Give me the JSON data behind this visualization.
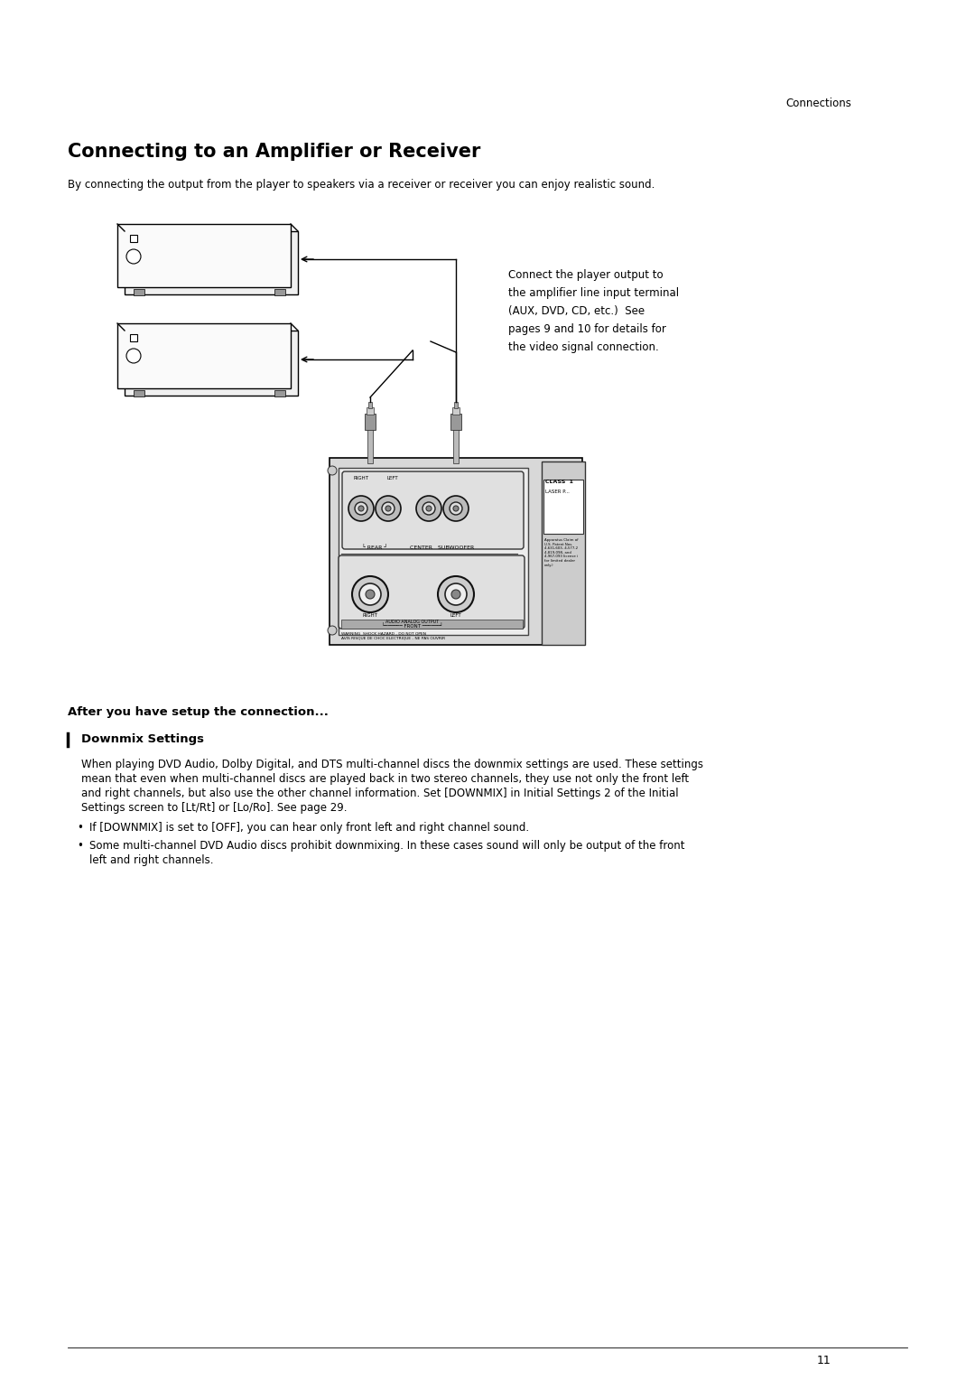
{
  "page_bg": "#ffffff",
  "header_text": "Connections",
  "title": "Connecting to an Amplifier or Receiver",
  "subtitle": "By connecting the output from the player to speakers via a receiver or receiver you can enjoy realistic sound.",
  "callout_text": "Connect the player output to\nthe amplifier line input terminal\n(AUX, DVD, CD, etc.)  See\npages 9 and 10 for details for\nthe video signal connection.",
  "section_header": "After you have setup the connection...",
  "subsection_title": "Downmix Settings",
  "body_line1": "When playing DVD Audio, Dolby Digital, and DTS multi-channel discs the downmix settings are used. These settings",
  "body_line2": "mean that even when multi-channel discs are played back in two stereo channels, they use not only the front left",
  "body_line3": "and right channels, but also use the other channel information. Set [DOWNMIX] in Initial Settings 2 of the Initial",
  "body_line4": "Settings screen to [Lt/Rt] or [Lo/Ro]. See page 29.",
  "bullet1": "If [DOWNMIX] is set to [OFF], you can hear only front left and right channel sound.",
  "bullet2a": "Some multi-channel DVD Audio discs prohibit downmixing. In these cases sound will only be output of the front",
  "bullet2b": "left and right channels.",
  "page_number": "11"
}
